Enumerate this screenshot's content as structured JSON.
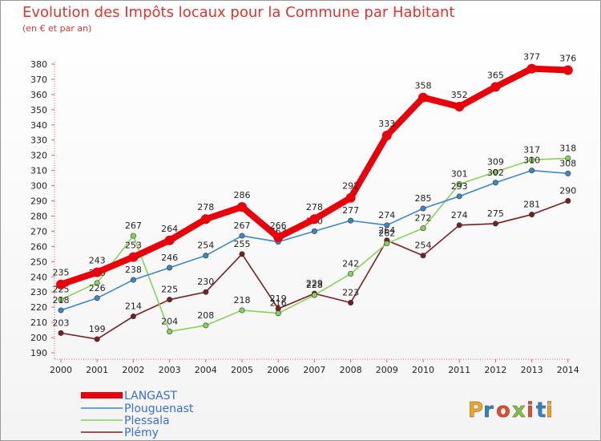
{
  "header": {
    "title": "Evolution des Impôts locaux pour la Commune par Habitant",
    "subtitle": "(en € et par an)"
  },
  "brand": {
    "letters": [
      "P",
      "r",
      "o",
      "x",
      "i",
      "t",
      "i"
    ],
    "colors": [
      "#f2a31b",
      "#2f83c5",
      "#e8492b",
      "#7fbf3f",
      "#e8492b",
      "#2f83c5",
      "#f2a31b"
    ]
  },
  "chart_data": {
    "type": "line",
    "title": "Evolution des Impôts locaux pour la Commune par Habitant",
    "subtitle": "(en € et par an)",
    "x": [
      "2000",
      "2001",
      "2002",
      "2003",
      "2004",
      "2005",
      "2006",
      "2007",
      "2008",
      "2009",
      "2010",
      "2011",
      "2012",
      "2013",
      "2014"
    ],
    "yticks": [
      "190",
      "200",
      "210",
      "220",
      "230",
      "240",
      "250",
      "260",
      "270",
      "280",
      "290",
      "300",
      "310",
      "320",
      "330",
      "340",
      "350",
      "360",
      "370",
      "380"
    ],
    "ylim": [
      190,
      380
    ],
    "grid": false,
    "legend": "bottom-left",
    "series": [
      {
        "name": "LANGAST",
        "color": "#e8000b",
        "values": [
          235,
          243,
          253,
          264,
          278,
          286,
          266,
          278,
          292,
          333,
          358,
          352,
          365,
          377,
          376
        ]
      },
      {
        "name": "Plouguenast",
        "color": "#3d87c8",
        "values": [
          218,
          226,
          238,
          246,
          254,
          267,
          263,
          270,
          277,
          274,
          285,
          293,
          302,
          310,
          308
        ]
      },
      {
        "name": "Plessala",
        "color": "#88d25a",
        "values": [
          225,
          236,
          267,
          204,
          208,
          218,
          216,
          228,
          242,
          262,
          272,
          301,
          309,
          317,
          318
        ]
      },
      {
        "name": "Plémy",
        "color": "#7a1f1f",
        "values": [
          203,
          199,
          214,
          225,
          230,
          255,
          219,
          229,
          223,
          264,
          254,
          274,
          275,
          281,
          290
        ]
      }
    ]
  }
}
